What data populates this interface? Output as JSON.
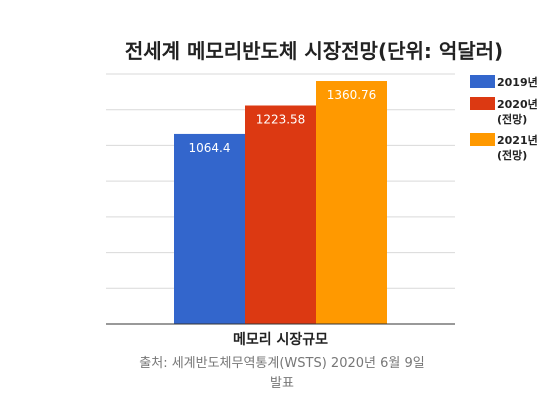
{
  "chart_data": {
    "type": "bar",
    "title": "전세계 메모리반도체 시장전망(단위: 억달러)",
    "categories": [
      "메모리 시장규모"
    ],
    "series": [
      {
        "name": [
          "2019년"
        ],
        "values": [
          1064.4
        ],
        "label": "1064.4",
        "color": "#3366cc"
      },
      {
        "name": [
          "2020년",
          "(전망)"
        ],
        "values": [
          1223.58
        ],
        "label": "1223.58",
        "color": "#dc3912"
      },
      {
        "name": [
          "2021년",
          "(전망)"
        ],
        "values": [
          1360.76
        ],
        "label": "1360.76",
        "color": "#ff9900"
      }
    ],
    "ylim": [
      0,
      1400
    ],
    "grid": true,
    "legend": "right",
    "source": [
      "출처: 세계반도체무역통계(WSTS) 2020년 6월 9일",
      "발표"
    ]
  }
}
